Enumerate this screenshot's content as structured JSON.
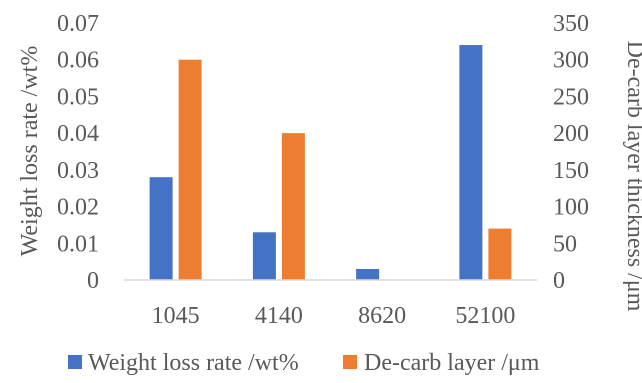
{
  "chart_data": {
    "type": "bar",
    "categories": [
      "1045",
      "4140",
      "8620",
      "52100"
    ],
    "series": [
      {
        "name": "Weight loss rate /wt%",
        "axis": "left",
        "color": "#4472C4",
        "values": [
          0.028,
          0.013,
          0.003,
          0.064
        ]
      },
      {
        "name": "De-carb layer /μm",
        "axis": "right",
        "color": "#ED7D31",
        "values": [
          300,
          200,
          0,
          70
        ]
      }
    ],
    "ylabel": "Weight loss rate /wt%",
    "y2label": "De-carb layer thickness /μm",
    "ylim": [
      0,
      0.07
    ],
    "y2lim": [
      0,
      350
    ],
    "yticks": [
      "0",
      "0.01",
      "0.02",
      "0.03",
      "0.04",
      "0.05",
      "0.06",
      "0.07"
    ],
    "y2ticks": [
      "0",
      "50",
      "100",
      "150",
      "200",
      "250",
      "300",
      "350"
    ],
    "grid": false,
    "legend": "bottom"
  }
}
